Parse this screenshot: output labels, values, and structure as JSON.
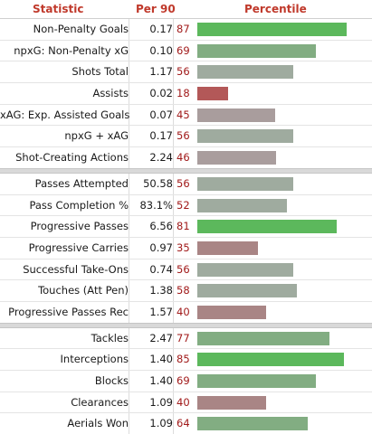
{
  "header": {
    "statistic": "Statistic",
    "per90": "Per 90",
    "percentile": "Percentile"
  },
  "colors": {
    "high": "#5cb85c",
    "mid": "#82ad82",
    "neutral": "#9fab9f",
    "lowneutral": "#a99d9d",
    "low": "#a98585",
    "verylow": "#b35858"
  },
  "groups": [
    [
      {
        "stat": "Non-Penalty Goals",
        "per90": "0.17",
        "pct": 87
      },
      {
        "stat": "npxG: Non-Penalty xG",
        "per90": "0.10",
        "pct": 69
      },
      {
        "stat": "Shots Total",
        "per90": "1.17",
        "pct": 56
      },
      {
        "stat": "Assists",
        "per90": "0.02",
        "pct": 18
      },
      {
        "stat": "xAG: Exp. Assisted Goals",
        "per90": "0.07",
        "pct": 45
      },
      {
        "stat": "npxG + xAG",
        "per90": "0.17",
        "pct": 56
      },
      {
        "stat": "Shot-Creating Actions",
        "per90": "2.24",
        "pct": 46
      }
    ],
    [
      {
        "stat": "Passes Attempted",
        "per90": "50.58",
        "pct": 56
      },
      {
        "stat": "Pass Completion %",
        "per90": "83.1%",
        "pct": 52
      },
      {
        "stat": "Progressive Passes",
        "per90": "6.56",
        "pct": 81
      },
      {
        "stat": "Progressive Carries",
        "per90": "0.97",
        "pct": 35
      },
      {
        "stat": "Successful Take-Ons",
        "per90": "0.74",
        "pct": 56
      },
      {
        "stat": "Touches (Att Pen)",
        "per90": "1.38",
        "pct": 58
      },
      {
        "stat": "Progressive Passes Rec",
        "per90": "1.57",
        "pct": 40
      }
    ],
    [
      {
        "stat": "Tackles",
        "per90": "2.47",
        "pct": 77
      },
      {
        "stat": "Interceptions",
        "per90": "1.40",
        "pct": 85
      },
      {
        "stat": "Blocks",
        "per90": "1.40",
        "pct": 69
      },
      {
        "stat": "Clearances",
        "per90": "1.09",
        "pct": 40
      },
      {
        "stat": "Aerials Won",
        "per90": "1.09",
        "pct": 64
      }
    ]
  ]
}
